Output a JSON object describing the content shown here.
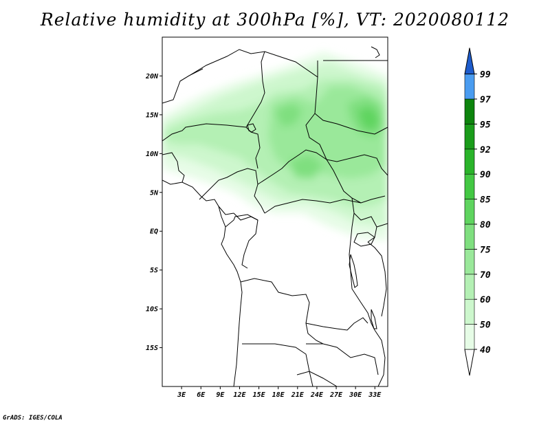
{
  "title": "Relative humidity at 300hPa [%], VT: 2020080112",
  "credit": "GrADS: IGES/COLA",
  "map": {
    "lon_range": [
      0,
      35
    ],
    "lat_range": [
      -20,
      25
    ],
    "lat_ticks": [
      {
        "lat": 20,
        "label": "20N"
      },
      {
        "lat": 15,
        "label": "15N"
      },
      {
        "lat": 10,
        "label": "10N"
      },
      {
        "lat": 5,
        "label": "5N"
      },
      {
        "lat": 0,
        "label": "EQ"
      },
      {
        "lat": -5,
        "label": "5S"
      },
      {
        "lat": -10,
        "label": "10S"
      },
      {
        "lat": -15,
        "label": "15S"
      }
    ],
    "lon_ticks": [
      {
        "lon": 3,
        "label": "3E"
      },
      {
        "lon": 6,
        "label": "6E"
      },
      {
        "lon": 9,
        "label": "9E"
      },
      {
        "lon": 12,
        "label": "12E"
      },
      {
        "lon": 15,
        "label": "15E"
      },
      {
        "lon": 18,
        "label": "18E"
      },
      {
        "lon": 21,
        "label": "21E"
      },
      {
        "lon": 24,
        "label": "24E"
      },
      {
        "lon": 27,
        "label": "27E"
      },
      {
        "lon": 30,
        "label": "30E"
      },
      {
        "lon": 33,
        "label": "33E"
      }
    ]
  },
  "colorbar": {
    "levels": [
      {
        "label": "40",
        "color": "#e6fce6"
      },
      {
        "label": "50",
        "color": "#cdf7cd"
      },
      {
        "label": "60",
        "color": "#b4f0b4"
      },
      {
        "label": "70",
        "color": "#9ae89a"
      },
      {
        "label": "75",
        "color": "#7fdf7f"
      },
      {
        "label": "80",
        "color": "#5fd45f"
      },
      {
        "label": "85",
        "color": "#43c843"
      },
      {
        "label": "90",
        "color": "#2ab42a"
      },
      {
        "label": "92",
        "color": "#1a9c1a"
      },
      {
        "label": "95",
        "color": "#0d840d"
      },
      {
        "label": "97",
        "color": "#4a9cf0"
      },
      {
        "label": "99",
        "color": "#2a78e0"
      }
    ],
    "low_color": "#ffffff",
    "high_color": "#1e5ccc"
  }
}
